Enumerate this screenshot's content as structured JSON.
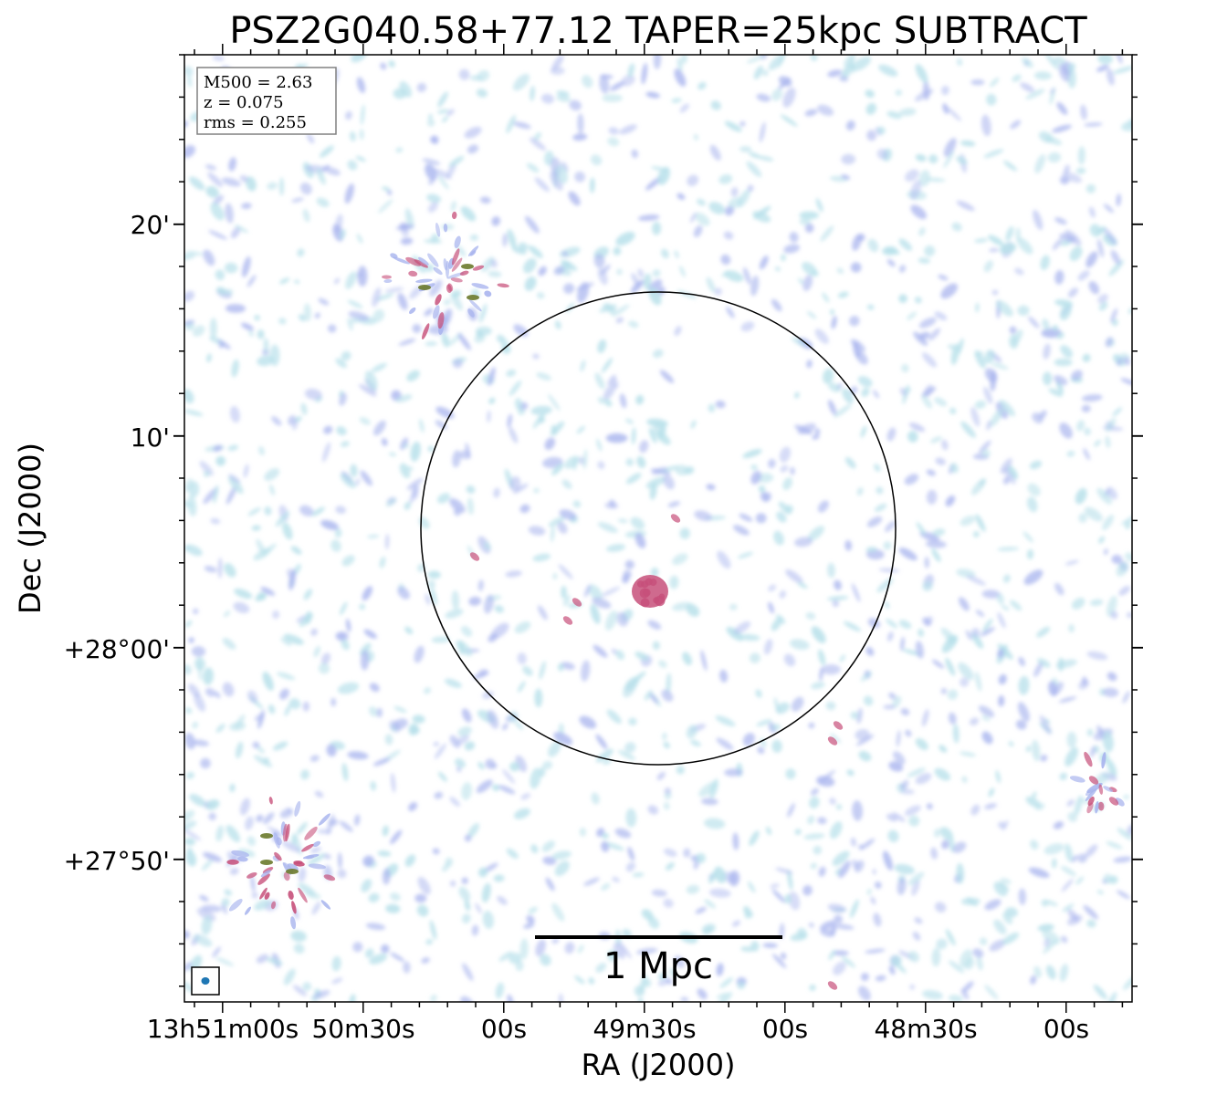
{
  "figure": {
    "title": "PSZ2G040.58+77.12 TAPER=25kpc SUBTRACT",
    "xlabel": "RA (J2000)",
    "ylabel": "Dec (J2000)",
    "x_ticks": [
      "13h51m00s",
      "50m30s",
      "00s",
      "49m30s",
      "00s",
      "48m30s",
      "00s"
    ],
    "y_ticks": [
      "20'",
      "10'",
      "+28°00'",
      "+27°50'"
    ],
    "info_box": [
      "M500 = 2.63",
      "z = 0.075",
      "rms = 0.255"
    ],
    "scale_bar_label": "1 Mpc",
    "colors": {
      "noise_light": "#b7e0ea",
      "noise_mid": "#a8b4ee",
      "source_strong": "#c7507a",
      "source_core": "#6b7a2c",
      "beam": "#1f77b4"
    }
  }
}
